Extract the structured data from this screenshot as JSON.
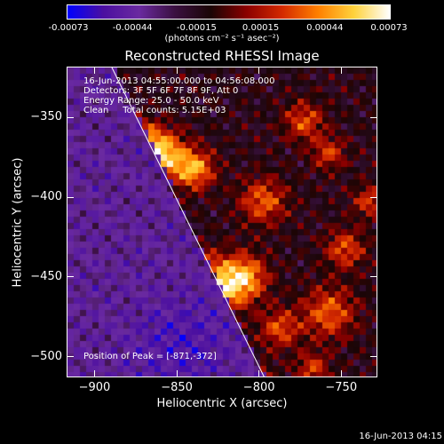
{
  "colorbar": {
    "ticks": [
      "-0.00073",
      "-0.00044",
      "-0.00015",
      "0.00015",
      "0.00044",
      "0.00073"
    ],
    "units": "(photons cm⁻² s⁻¹ asec⁻²)"
  },
  "info": {
    "line1": "16-Jun-2013 04:55:00.000 to 04:56:08.000",
    "line2": "Detectors: 3F 5F 6F 7F 8F 9F, Att 0",
    "line3": "Energy Range: 25.0 - 50.0 keV",
    "line4": "Clean     Total counts: 5.15E+03",
    "peak": "Position of Peak = [-871,-372]"
  },
  "footer": "16-Jun-2013 04:15",
  "chart_data": {
    "type": "heatmap",
    "title": "Reconstructed RHESSI Image",
    "xlabel": "Heliocentric X (arcsec)",
    "ylabel": "Heliocentric Y (arcsec)",
    "xlim": [
      -917,
      -728
    ],
    "ylim": [
      -513,
      -318
    ],
    "xticks": [
      -900,
      -850,
      -800,
      -750
    ],
    "yticks": [
      -350,
      -400,
      -450,
      -500
    ],
    "zlim": [
      -0.00073,
      0.00073
    ],
    "peak": [
      -871,
      -372
    ],
    "limb_line": [
      [
        -890,
        -318
      ],
      [
        -797,
        -513
      ]
    ],
    "colormap": [
      "#0000ff",
      "#4b0fa0",
      "#6a2aa0",
      "#3a1040",
      "#1a0505",
      "#8b0000",
      "#d42a00",
      "#ff8000",
      "#ffd23c",
      "#ffffff"
    ]
  }
}
